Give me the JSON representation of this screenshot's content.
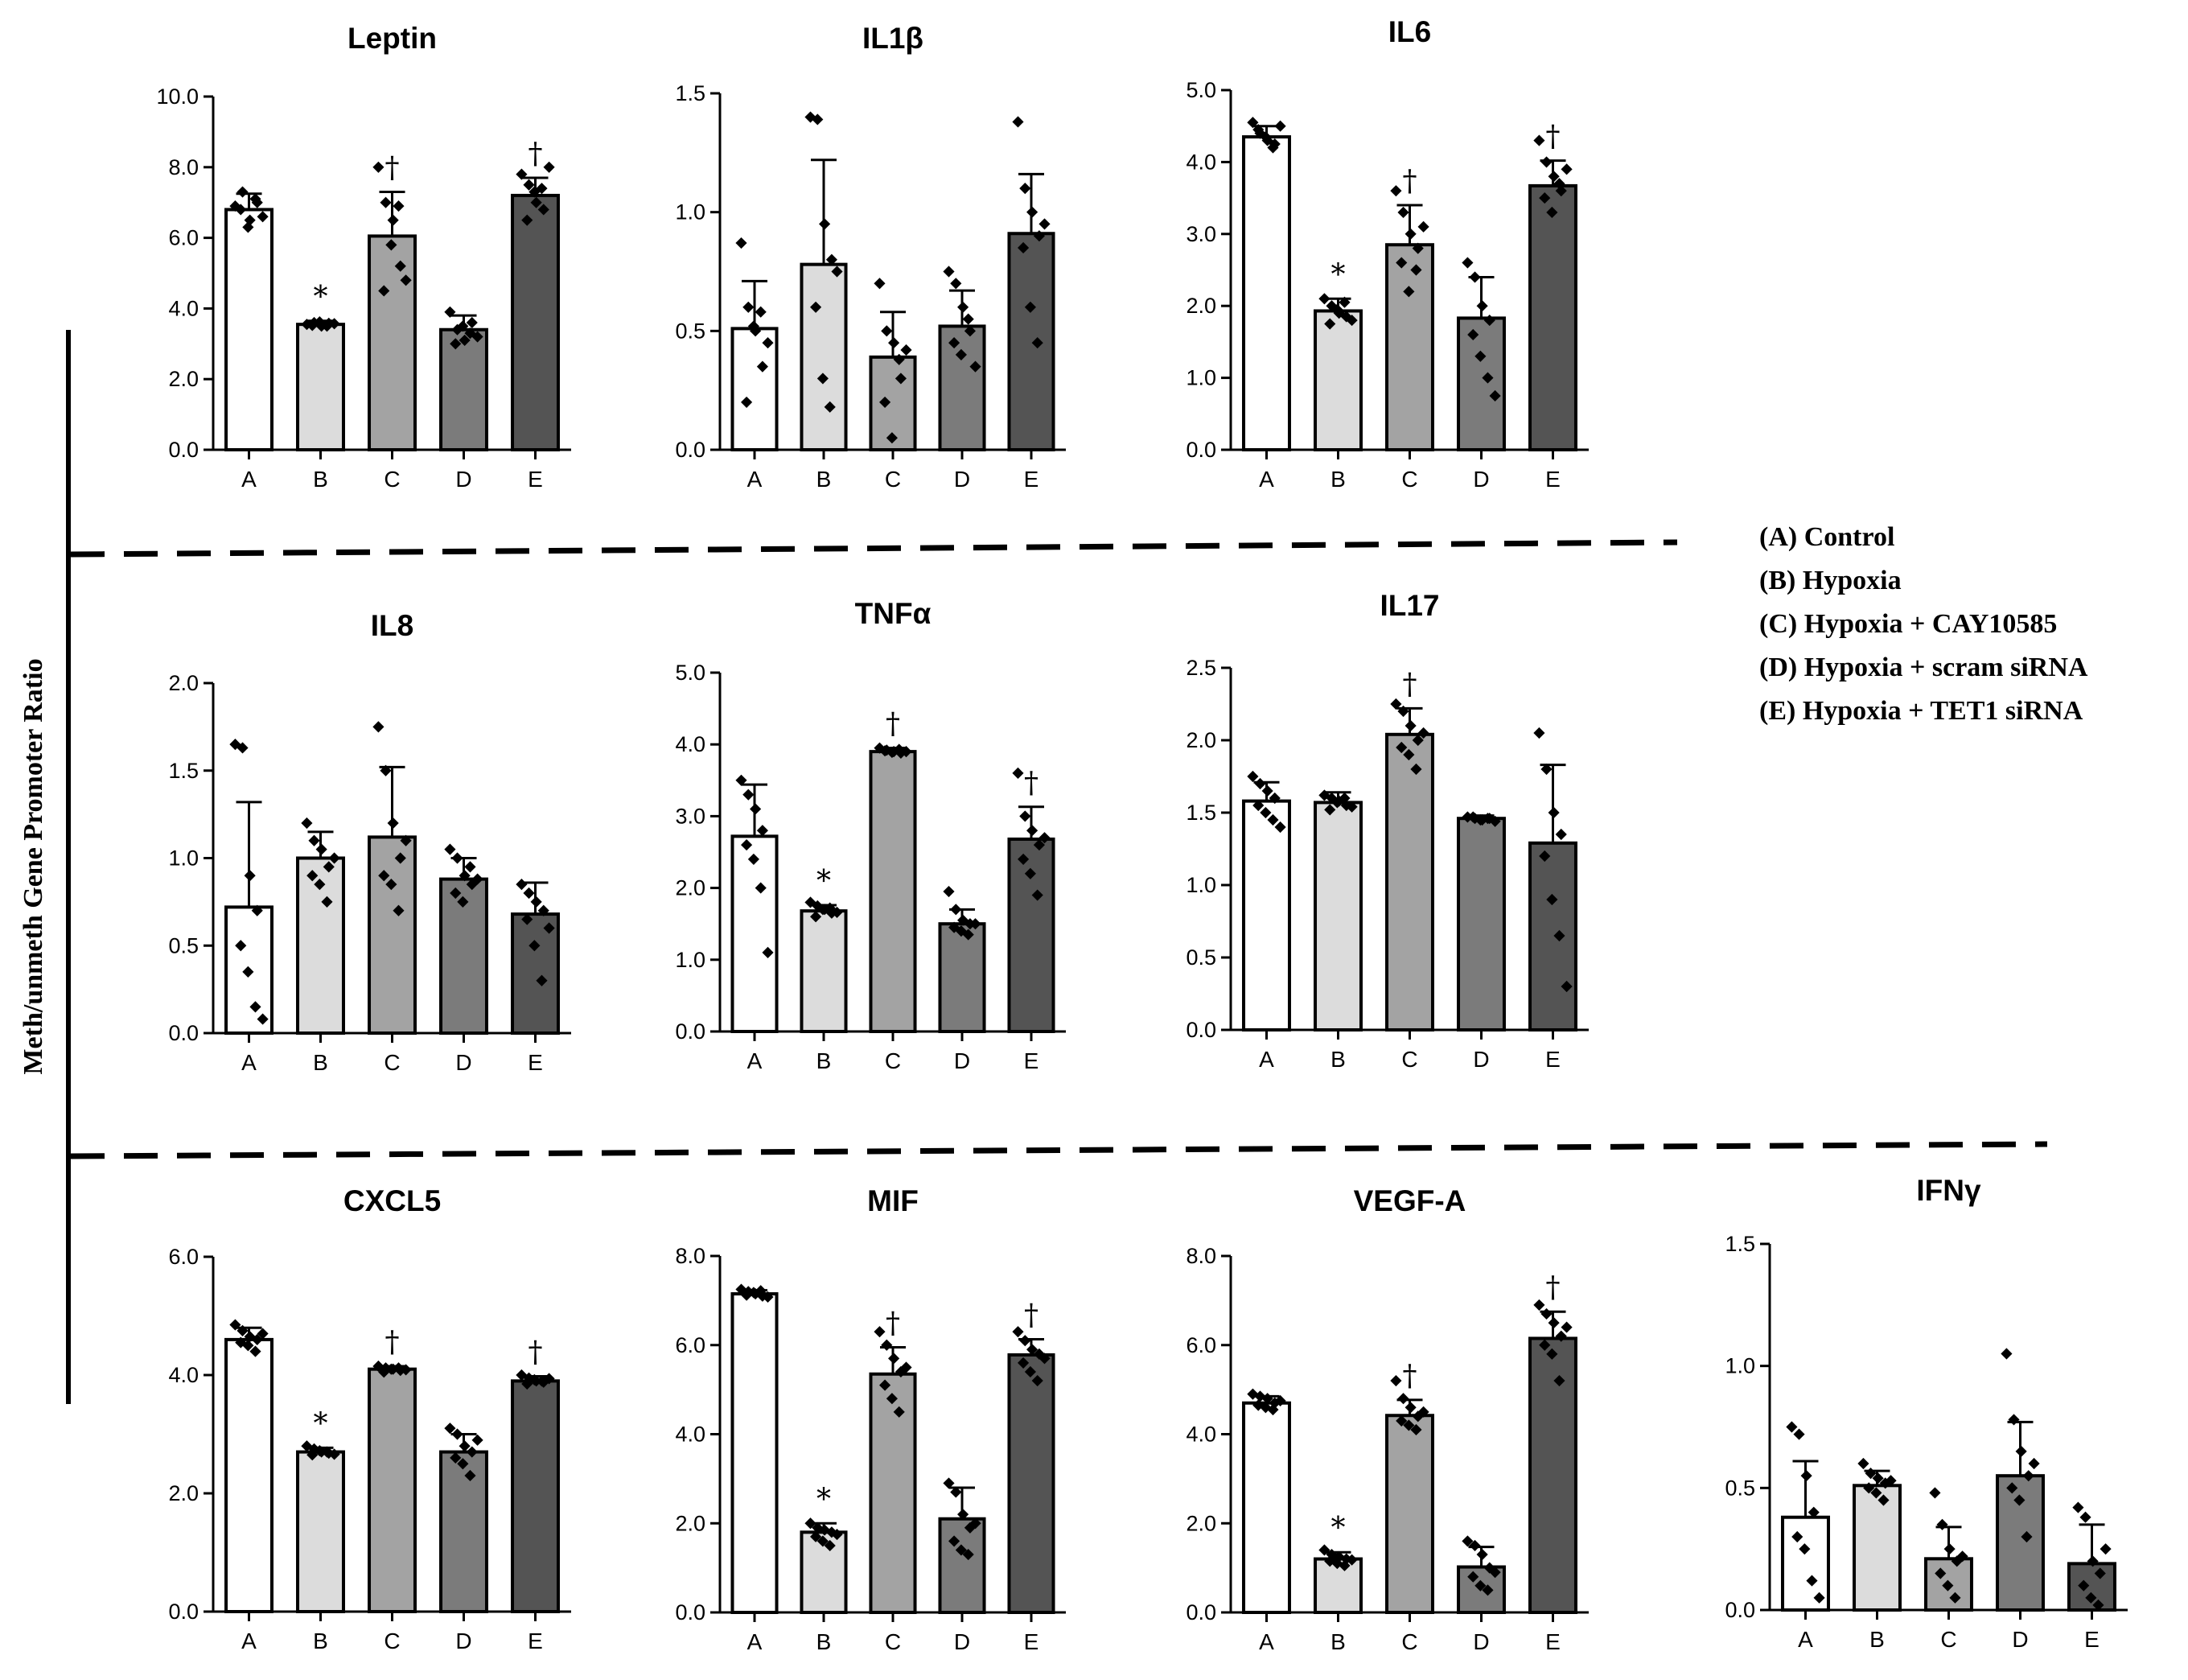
{
  "figure": {
    "y_axis_label": "Meth/unmeth Gene Promoter Ratio",
    "legend": [
      "(A) Control",
      "(B) Hypoxia",
      "(C) Hypoxia + CAY10585",
      "(D) Hypoxia + scram siRNA",
      "(E) Hypoxia + TET1 siRNA"
    ],
    "bar_colors": [
      "#ffffff",
      "#dcdcdc",
      "#a3a3a3",
      "#7b7b7b",
      "#545454"
    ]
  },
  "chart_data": [
    {
      "type": "bar",
      "title": "Leptin",
      "categories": [
        "A",
        "B",
        "C",
        "D",
        "E"
      ],
      "values": [
        6.8,
        3.55,
        6.05,
        3.4,
        7.2
      ],
      "errors": [
        0.45,
        0.1,
        1.25,
        0.4,
        0.5
      ],
      "ylim": [
        0,
        10
      ],
      "yticks": [
        "0.0",
        "2.0",
        "4.0",
        "6.0",
        "8.0",
        "10.0"
      ],
      "marks": [
        "",
        "*",
        "†",
        "",
        "†"
      ],
      "points": [
        [
          6.9,
          7.3,
          6.5,
          7.0,
          6.8,
          6.3,
          7.1,
          6.6
        ],
        [
          3.55,
          3.6,
          3.5,
          3.58,
          3.52,
          3.62,
          3.5,
          3.57
        ],
        [
          8.0,
          7.0,
          6.5,
          5.2,
          4.5,
          5.8,
          6.9,
          4.8
        ],
        [
          3.9,
          3.4,
          3.1,
          3.6,
          3.0,
          3.5,
          3.3,
          3.2
        ],
        [
          7.8,
          7.5,
          7.0,
          6.8,
          6.5,
          7.3,
          7.4,
          8.0
        ]
      ]
    },
    {
      "type": "bar",
      "title": "IL1β",
      "categories": [
        "A",
        "B",
        "C",
        "D",
        "E"
      ],
      "values": [
        0.51,
        0.78,
        0.39,
        0.52,
        0.91
      ],
      "errors": [
        0.2,
        0.44,
        0.19,
        0.15,
        0.25
      ],
      "ylim": [
        0,
        1.5
      ],
      "yticks": [
        "0.0",
        "0.5",
        "1.0",
        "1.5"
      ],
      "marks": [
        "",
        "",
        "",
        "",
        ""
      ],
      "points": [
        [
          0.87,
          0.6,
          0.5,
          0.35,
          0.2,
          0.52,
          0.58,
          0.45
        ],
        [
          1.4,
          1.39,
          0.95,
          0.8,
          0.6,
          0.3,
          0.18,
          0.75
        ],
        [
          0.7,
          0.5,
          0.45,
          0.3,
          0.2,
          0.05,
          0.38,
          0.42
        ],
        [
          0.75,
          0.7,
          0.6,
          0.5,
          0.45,
          0.4,
          0.55,
          0.35
        ],
        [
          1.38,
          1.1,
          1.0,
          0.9,
          0.85,
          0.6,
          0.45,
          0.95
        ]
      ]
    },
    {
      "type": "bar",
      "title": "IL6",
      "categories": [
        "A",
        "B",
        "C",
        "D",
        "E"
      ],
      "values": [
        4.35,
        1.93,
        2.85,
        1.83,
        3.67
      ],
      "errors": [
        0.15,
        0.17,
        0.55,
        0.57,
        0.35
      ],
      "ylim": [
        0,
        5
      ],
      "yticks": [
        "0.0",
        "1.0",
        "2.0",
        "3.0",
        "4.0",
        "5.0"
      ],
      "marks": [
        "",
        "*",
        "†",
        "",
        "†"
      ],
      "points": [
        [
          4.55,
          4.4,
          4.3,
          4.25,
          4.45,
          4.35,
          4.2,
          4.5
        ],
        [
          2.1,
          2.0,
          1.9,
          1.85,
          1.75,
          1.95,
          2.05,
          1.8
        ],
        [
          3.6,
          3.3,
          3.0,
          2.8,
          2.6,
          2.2,
          2.5,
          3.1
        ],
        [
          2.6,
          2.4,
          2.0,
          1.8,
          1.6,
          1.3,
          1.0,
          0.75
        ],
        [
          4.3,
          4.0,
          3.8,
          3.6,
          3.5,
          3.3,
          3.7,
          3.9
        ]
      ]
    },
    {
      "type": "bar",
      "title": "IL8",
      "categories": [
        "A",
        "B",
        "C",
        "D",
        "E"
      ],
      "values": [
        0.72,
        1.0,
        1.12,
        0.88,
        0.68
      ],
      "errors": [
        0.6,
        0.15,
        0.4,
        0.12,
        0.18
      ],
      "ylim": [
        0,
        2
      ],
      "yticks": [
        "0.0",
        "0.5",
        "1.0",
        "1.5",
        "2.0"
      ],
      "marks": [
        "",
        "",
        "",
        "",
        ""
      ],
      "points": [
        [
          1.65,
          1.63,
          0.9,
          0.7,
          0.5,
          0.35,
          0.15,
          0.08
        ],
        [
          1.2,
          1.1,
          1.05,
          0.95,
          0.9,
          0.85,
          0.75,
          1.0
        ],
        [
          1.75,
          1.5,
          1.2,
          1.0,
          0.9,
          0.85,
          0.7,
          1.1
        ],
        [
          1.05,
          1.0,
          0.9,
          0.85,
          0.8,
          0.75,
          0.95,
          0.88
        ],
        [
          0.85,
          0.8,
          0.75,
          0.7,
          0.65,
          0.5,
          0.3,
          0.6
        ]
      ]
    },
    {
      "type": "bar",
      "title": "TNFα",
      "categories": [
        "A",
        "B",
        "C",
        "D",
        "E"
      ],
      "values": [
        2.72,
        1.68,
        3.9,
        1.5,
        2.68
      ],
      "errors": [
        0.72,
        0.08,
        0.05,
        0.2,
        0.45
      ],
      "ylim": [
        0,
        5
      ],
      "yticks": [
        "0.0",
        "1.0",
        "2.0",
        "3.0",
        "4.0",
        "5.0"
      ],
      "marks": [
        "",
        "*",
        "†",
        "",
        "†"
      ],
      "points": [
        [
          3.5,
          3.3,
          3.1,
          2.8,
          2.6,
          2.4,
          2.0,
          1.1
        ],
        [
          1.8,
          1.75,
          1.7,
          1.65,
          1.6,
          1.7,
          1.72,
          1.66
        ],
        [
          3.95,
          3.92,
          3.9,
          3.88,
          3.91,
          3.89,
          3.93,
          3.9
        ],
        [
          1.95,
          1.7,
          1.55,
          1.5,
          1.45,
          1.4,
          1.35,
          1.5
        ],
        [
          3.6,
          3.0,
          2.8,
          2.6,
          2.4,
          2.2,
          1.9,
          2.7
        ]
      ]
    },
    {
      "type": "bar",
      "title": "IL17",
      "categories": [
        "A",
        "B",
        "C",
        "D",
        "E"
      ],
      "values": [
        1.58,
        1.57,
        2.04,
        1.46,
        1.29
      ],
      "errors": [
        0.13,
        0.07,
        0.18,
        0.02,
        0.54
      ],
      "ylim": [
        0,
        2.5
      ],
      "yticks": [
        "0.0",
        "0.5",
        "1.0",
        "1.5",
        "2.0",
        "2.5"
      ],
      "marks": [
        "",
        "",
        "†",
        "",
        ""
      ],
      "points": [
        [
          1.75,
          1.7,
          1.65,
          1.6,
          1.55,
          1.5,
          1.45,
          1.4
        ],
        [
          1.62,
          1.6,
          1.58,
          1.55,
          1.52,
          1.57,
          1.6,
          1.54
        ],
        [
          2.25,
          2.2,
          2.1,
          2.0,
          1.95,
          1.9,
          1.8,
          2.05
        ],
        [
          1.47,
          1.46,
          1.45,
          1.46,
          1.47,
          1.45,
          1.46,
          1.44
        ],
        [
          2.05,
          1.8,
          1.5,
          1.35,
          1.2,
          0.9,
          0.65,
          0.3
        ]
      ]
    },
    {
      "type": "bar",
      "title": "CXCL5",
      "categories": [
        "A",
        "B",
        "C",
        "D",
        "E"
      ],
      "values": [
        4.6,
        2.7,
        4.1,
        2.7,
        3.9
      ],
      "errors": [
        0.2,
        0.07,
        0.05,
        0.3,
        0.08
      ],
      "ylim": [
        0,
        6
      ],
      "yticks": [
        "0.0",
        "2.0",
        "4.0",
        "6.0"
      ],
      "marks": [
        "",
        "*",
        "†",
        "",
        "†"
      ],
      "points": [
        [
          4.85,
          4.75,
          4.65,
          4.6,
          4.55,
          4.5,
          4.4,
          4.7
        ],
        [
          2.8,
          2.75,
          2.7,
          2.68,
          2.65,
          2.72,
          2.7,
          2.66
        ],
        [
          4.15,
          4.12,
          4.1,
          4.08,
          4.05,
          4.1,
          4.12,
          4.09
        ],
        [
          3.1,
          3.0,
          2.8,
          2.7,
          2.6,
          2.5,
          2.3,
          2.9
        ],
        [
          4.0,
          3.95,
          3.9,
          3.88,
          3.85,
          3.92,
          3.9,
          3.94
        ]
      ]
    },
    {
      "type": "bar",
      "title": "MIF",
      "categories": [
        "A",
        "B",
        "C",
        "D",
        "E"
      ],
      "values": [
        7.15,
        1.8,
        5.35,
        2.1,
        5.78
      ],
      "errors": [
        0.08,
        0.2,
        0.6,
        0.7,
        0.35
      ],
      "ylim": [
        0,
        8
      ],
      "yticks": [
        "0.0",
        "2.0",
        "4.0",
        "6.0",
        "8.0"
      ],
      "marks": [
        "",
        "*",
        "†",
        "",
        "†"
      ],
      "points": [
        [
          7.25,
          7.2,
          7.15,
          7.1,
          7.12,
          7.18,
          7.22,
          7.08
        ],
        [
          2.0,
          1.9,
          1.85,
          1.8,
          1.7,
          1.6,
          1.5,
          1.75
        ],
        [
          6.3,
          6.0,
          5.7,
          5.4,
          5.1,
          4.8,
          4.5,
          5.5
        ],
        [
          2.9,
          2.7,
          2.2,
          1.9,
          1.6,
          1.4,
          1.3,
          2.0
        ],
        [
          6.3,
          6.1,
          5.9,
          5.8,
          5.6,
          5.4,
          5.2,
          5.7
        ]
      ]
    },
    {
      "type": "bar",
      "title": "VEGF-A",
      "categories": [
        "A",
        "B",
        "C",
        "D",
        "E"
      ],
      "values": [
        4.7,
        1.2,
        4.42,
        1.02,
        6.15
      ],
      "errors": [
        0.15,
        0.15,
        0.35,
        0.45,
        0.6
      ],
      "ylim": [
        0,
        8
      ],
      "yticks": [
        "0.0",
        "2.0",
        "4.0",
        "6.0",
        "8.0"
      ],
      "marks": [
        "",
        "*",
        "†",
        "",
        "†"
      ],
      "points": [
        [
          4.9,
          4.85,
          4.8,
          4.7,
          4.65,
          4.6,
          4.55,
          4.75
        ],
        [
          1.4,
          1.3,
          1.25,
          1.2,
          1.15,
          1.1,
          1.05,
          1.18
        ],
        [
          5.2,
          4.8,
          4.6,
          4.4,
          4.3,
          4.2,
          4.1,
          4.5
        ],
        [
          1.6,
          1.5,
          1.3,
          1.0,
          0.8,
          0.6,
          0.5,
          0.9
        ],
        [
          6.9,
          6.7,
          6.5,
          6.2,
          6.0,
          5.8,
          5.2,
          6.4
        ]
      ]
    },
    {
      "type": "bar",
      "title": "IFNγ",
      "categories": [
        "A",
        "B",
        "C",
        "D",
        "E"
      ],
      "values": [
        0.38,
        0.51,
        0.21,
        0.55,
        0.19
      ],
      "errors": [
        0.23,
        0.06,
        0.13,
        0.22,
        0.16
      ],
      "ylim": [
        0,
        1.5
      ],
      "yticks": [
        "0.0",
        "0.5",
        "1.0",
        "1.5"
      ],
      "marks": [
        "",
        "",
        "",
        "",
        ""
      ],
      "points": [
        [
          0.75,
          0.72,
          0.55,
          0.4,
          0.3,
          0.25,
          0.12,
          0.05
        ],
        [
          0.6,
          0.56,
          0.54,
          0.52,
          0.5,
          0.48,
          0.45,
          0.53
        ],
        [
          0.48,
          0.35,
          0.25,
          0.2,
          0.15,
          0.1,
          0.05,
          0.22
        ],
        [
          1.05,
          0.78,
          0.65,
          0.55,
          0.5,
          0.45,
          0.3,
          0.6
        ],
        [
          0.42,
          0.38,
          0.2,
          0.15,
          0.1,
          0.05,
          0.02,
          0.25
        ]
      ]
    }
  ]
}
